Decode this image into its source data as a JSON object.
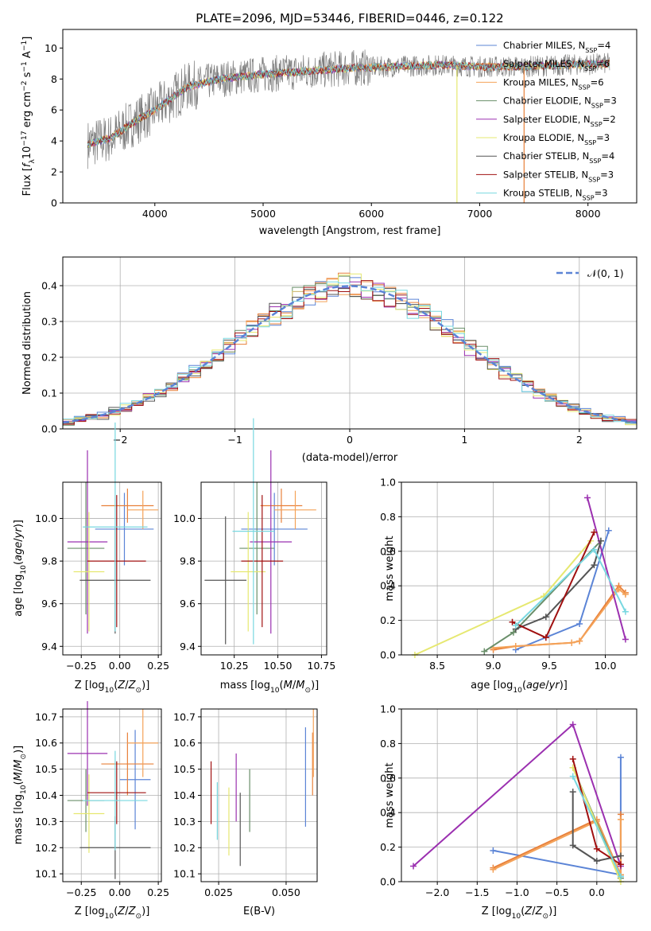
{
  "colors": [
    "#5b84d6",
    "#e8803a",
    "#f4a258",
    "#6a8f6a",
    "#9b30b0",
    "#e6e870",
    "#555555",
    "#a01010",
    "#78d8e0"
  ],
  "chart_data": [
    {
      "id": "spectrum",
      "type": "line",
      "title": "PLATE=2096, MJD=53446, FIBERID=0446, z=0.122",
      "xlabel": "wavelength [Angstrom, rest frame]",
      "ylabel": "Flux [fλ10⁻¹⁷ erg cm⁻² s⁻¹ A⁻¹]",
      "xlim": [
        3150,
        8450
      ],
      "ylim": [
        0,
        11.2
      ],
      "xticks": [
        4000,
        5000,
        6000,
        7000,
        8000
      ],
      "yticks": [
        0,
        2,
        4,
        6,
        8,
        10
      ],
      "series": [
        {
          "name": "Chabrier MILES, N_SSP=4"
        },
        {
          "name": "Salpeter MILES, N_SSP=6"
        },
        {
          "name": "Kroupa MILES, N_SSP=6"
        },
        {
          "name": "Chabrier ELODIE, N_SSP=3"
        },
        {
          "name": "Salpeter ELODIE, N_SSP=2"
        },
        {
          "name": "Kroupa ELODIE, N_SSP=3"
        },
        {
          "name": "Chabrier STELIB, N_SSP=4"
        },
        {
          "name": "Salpeter STELIB, N_SSP=3"
        },
        {
          "name": "Kroupa STELIB, N_SSP=3"
        }
      ],
      "continuum": {
        "x": [
          3380,
          3600,
          3800,
          4000,
          4300,
          4600,
          5000,
          5400,
          5800,
          6200,
          6600,
          7000,
          7400,
          7800,
          8200
        ],
        "y": [
          3.8,
          4.2,
          5.2,
          6.0,
          7.5,
          8.0,
          8.3,
          8.5,
          8.7,
          8.8,
          8.9,
          8.8,
          8.8,
          8.9,
          9.0
        ]
      },
      "spikes": [
        {
          "x": 6790,
          "from": 8.9,
          "to": 0,
          "color": 5
        },
        {
          "x": 7410,
          "from": 8.8,
          "to": 0,
          "color": 1
        }
      ]
    },
    {
      "id": "residuals",
      "type": "line",
      "xlabel": "(data-model)/error",
      "ylabel": "Normed distribution",
      "xlim": [
        -2.5,
        2.5
      ],
      "ylim": [
        0,
        0.48
      ],
      "xticks": [
        -2,
        -1,
        0,
        1,
        2
      ],
      "xticklabels": [
        "−2",
        "−1",
        "0",
        "1",
        "2"
      ],
      "yticks": [
        0.0,
        0.1,
        0.2,
        0.3,
        0.4
      ],
      "legend": "N(0,1)",
      "gaussian": {
        "mean": 0,
        "sigma": 1,
        "color": "#5b84d6"
      }
    },
    {
      "id": "age-vs-z",
      "type": "scatter",
      "xlabel": "Z [log10(Z/Z⊙)]",
      "ylabel": "age [log10(age/yr)]",
      "xlim": [
        -0.37,
        0.27
      ],
      "ylim": [
        9.36,
        10.17
      ],
      "xticks": [
        -0.25,
        0.0,
        0.25
      ],
      "xticklabels": [
        "−0.25",
        "0.00",
        "0.25"
      ],
      "yticks": [
        9.4,
        9.6,
        9.8,
        10.0
      ],
      "points": [
        {
          "c": 0,
          "x": 0.03,
          "xe": 0.19,
          "y": 9.95,
          "ye": 0.17
        },
        {
          "c": 1,
          "x": 0.05,
          "xe": 0.17,
          "y": 10.06,
          "ye": 0.08
        },
        {
          "c": 2,
          "x": 0.15,
          "xe": 0.1,
          "y": 10.04,
          "ye": 0.09
        },
        {
          "c": 3,
          "x": -0.22,
          "xe": 0.12,
          "y": 9.86,
          "ye": 0.31
        },
        {
          "c": 4,
          "x": -0.21,
          "xe": 0.13,
          "y": 9.89,
          "ye": 0.43
        },
        {
          "c": 5,
          "x": -0.2,
          "xe": 0.1,
          "y": 9.75,
          "ye": 0.28
        },
        {
          "c": 6,
          "x": -0.03,
          "xe": 0.23,
          "y": 9.71,
          "ye": 0.25
        },
        {
          "c": 7,
          "x": -0.02,
          "xe": 0.19,
          "y": 9.8,
          "ye": 0.31
        },
        {
          "c": 8,
          "x": -0.03,
          "xe": 0.21,
          "y": 9.96,
          "ye": 0.49
        }
      ]
    },
    {
      "id": "age-vs-mass",
      "type": "scatter",
      "xlabel": "mass [log10(M/M⊙)]",
      "xlim": [
        10.06,
        10.78
      ],
      "ylim": [
        9.36,
        10.17
      ],
      "xticks": [
        10.25,
        10.5,
        10.75
      ],
      "xticklabels": [
        "10.25",
        "10.50",
        "10.75"
      ],
      "yticks": [
        9.4,
        9.6,
        9.8,
        10.0
      ],
      "points": [
        {
          "c": 0,
          "x": 10.48,
          "xe": 0.19,
          "y": 9.95,
          "ye": 0.17
        },
        {
          "c": 1,
          "x": 10.52,
          "xe": 0.12,
          "y": 10.06,
          "ye": 0.08
        },
        {
          "c": 2,
          "x": 10.6,
          "xe": 0.12,
          "y": 10.04,
          "ye": 0.09
        },
        {
          "c": 3,
          "x": 10.38,
          "xe": 0.1,
          "y": 9.86,
          "ye": 0.31
        },
        {
          "c": 4,
          "x": 10.46,
          "xe": 0.12,
          "y": 9.89,
          "ye": 0.43
        },
        {
          "c": 5,
          "x": 10.33,
          "xe": 0.1,
          "y": 9.75,
          "ye": 0.28
        },
        {
          "c": 6,
          "x": 10.2,
          "xe": 0.12,
          "y": 9.71,
          "ye": 0.3
        },
        {
          "c": 7,
          "x": 10.41,
          "xe": 0.12,
          "y": 9.8,
          "ye": 0.31
        },
        {
          "c": 8,
          "x": 10.36,
          "xe": 0.12,
          "y": 9.94,
          "ye": 0.53
        }
      ]
    },
    {
      "id": "weight-vs-age",
      "type": "line",
      "xlabel": "age [log10(age/yr)]",
      "ylabel": "mass weight",
      "xlim": [
        8.18,
        10.28
      ],
      "ylim": [
        0,
        1.0
      ],
      "xticks": [
        8.5,
        9.0,
        9.5,
        10.0
      ],
      "xticklabels": [
        "8.5",
        "9.0",
        "9.5",
        "10.0"
      ],
      "yticks": [
        0.0,
        0.2,
        0.4,
        0.6,
        0.8,
        1.0
      ],
      "series": [
        {
          "c": 0,
          "x": [
            9.2,
            9.77,
            10.03
          ],
          "y": [
            0.03,
            0.18,
            0.72
          ]
        },
        {
          "c": 1,
          "x": [
            9.0,
            9.2,
            9.7,
            9.77,
            10.12,
            10.18
          ],
          "y": [
            0.03,
            0.05,
            0.07,
            0.08,
            0.4,
            0.36
          ]
        },
        {
          "c": 2,
          "x": [
            9.0,
            9.2,
            9.7,
            9.77,
            10.12,
            10.18
          ],
          "y": [
            0.04,
            0.05,
            0.07,
            0.08,
            0.38,
            0.35
          ]
        },
        {
          "c": 3,
          "x": [
            8.92,
            9.18,
            9.96
          ],
          "y": [
            0.02,
            0.13,
            0.66
          ]
        },
        {
          "c": 4,
          "x": [
            9.84,
            10.18
          ],
          "y": [
            0.91,
            0.09
          ]
        },
        {
          "c": 5,
          "x": [
            8.3,
            9.45,
            9.87
          ],
          "y": [
            0.0,
            0.34,
            0.66
          ]
        },
        {
          "c": 6,
          "x": [
            9.2,
            9.47,
            9.9,
            9.96
          ],
          "y": [
            0.15,
            0.22,
            0.52,
            0.66
          ]
        },
        {
          "c": 7,
          "x": [
            9.17,
            9.47,
            9.9
          ],
          "y": [
            0.19,
            0.1,
            0.71
          ]
        },
        {
          "c": 8,
          "x": [
            9.2,
            9.9,
            10.18
          ],
          "y": [
            0.17,
            0.61,
            0.25
          ]
        }
      ]
    },
    {
      "id": "mass-vs-z",
      "type": "scatter",
      "xlabel": "Z [log10(Z/Z⊙)]",
      "ylabel": "mass [log10(M/M⊙)]",
      "xlim": [
        -0.37,
        0.27
      ],
      "ylim": [
        10.07,
        10.73
      ],
      "xticks": [
        -0.25,
        0.0,
        0.25
      ],
      "xticklabels": [
        "−0.25",
        "0.00",
        "0.25"
      ],
      "yticks": [
        10.1,
        10.2,
        10.3,
        10.4,
        10.5,
        10.6,
        10.7
      ],
      "points": [
        {
          "c": 0,
          "x": 0.1,
          "xe": 0.1,
          "y": 10.46,
          "ye": 0.19
        },
        {
          "c": 1,
          "x": 0.05,
          "xe": 0.17,
          "y": 10.52,
          "ye": 0.12
        },
        {
          "c": 2,
          "x": 0.15,
          "xe": 0.1,
          "y": 10.6,
          "ye": 0.13
        },
        {
          "c": 3,
          "x": -0.22,
          "xe": 0.12,
          "y": 10.38,
          "ye": 0.12
        },
        {
          "c": 4,
          "x": -0.21,
          "xe": 0.13,
          "y": 10.56,
          "ye": 0.2
        },
        {
          "c": 5,
          "x": -0.2,
          "xe": 0.1,
          "y": 10.33,
          "ye": 0.15
        },
        {
          "c": 6,
          "x": -0.03,
          "xe": 0.23,
          "y": 10.2,
          "ye": 0.12
        },
        {
          "c": 7,
          "x": -0.02,
          "xe": 0.19,
          "y": 10.41,
          "ye": 0.12
        },
        {
          "c": 8,
          "x": -0.03,
          "xe": 0.21,
          "y": 10.38,
          "ye": 0.19
        }
      ]
    },
    {
      "id": "mass-vs-ebv",
      "type": "scatter",
      "xlabel": "E(B-V)",
      "xlim": [
        0.0185,
        0.0615
      ],
      "ylim": [
        10.07,
        10.73
      ],
      "xticks": [
        0.025,
        0.05
      ],
      "xticklabels": [
        "0.025",
        "0.050"
      ],
      "yticks": [
        10.1,
        10.2,
        10.3,
        10.4,
        10.5,
        10.6,
        10.7
      ],
      "points": [
        {
          "c": 0,
          "x": 0.0572,
          "y": 10.47,
          "ye": 0.19
        },
        {
          "c": 1,
          "x": 0.0598,
          "y": 10.52,
          "ye": 0.12
        },
        {
          "c": 2,
          "x": 0.0601,
          "y": 10.6,
          "ye": 0.13
        },
        {
          "c": 3,
          "x": 0.0365,
          "y": 10.38,
          "ye": 0.12
        },
        {
          "c": 4,
          "x": 0.0315,
          "y": 10.43,
          "ye": 0.13
        },
        {
          "c": 5,
          "x": 0.0288,
          "y": 10.3,
          "ye": 0.13
        },
        {
          "c": 6,
          "x": 0.033,
          "y": 10.27,
          "ye": 0.14
        },
        {
          "c": 7,
          "x": 0.0222,
          "y": 10.41,
          "ye": 0.12
        },
        {
          "c": 8,
          "x": 0.0245,
          "y": 10.34,
          "ye": 0.11
        }
      ]
    },
    {
      "id": "weight-vs-z",
      "type": "line",
      "xlabel": "Z [log10(Z/Z⊙)]",
      "ylabel": "mass weight",
      "xlim": [
        -2.45,
        0.5
      ],
      "ylim": [
        0,
        1.0
      ],
      "xticks": [
        -2.0,
        -1.5,
        -1.0,
        -0.5,
        0.0
      ],
      "xticklabels": [
        "−2.0",
        "−1.5",
        "−1.0",
        "−0.5",
        "0.0"
      ],
      "yticks": [
        0.0,
        0.2,
        0.4,
        0.6,
        0.8,
        1.0
      ],
      "series": [
        {
          "c": 0,
          "x": [
            -1.3,
            0.3,
            0.3
          ],
          "y": [
            0.18,
            0.04,
            0.72
          ]
        },
        {
          "c": 1,
          "x": [
            -1.3,
            0.0,
            0.3,
            0.3
          ],
          "y": [
            0.08,
            0.36,
            0.04,
            0.39
          ]
        },
        {
          "c": 2,
          "x": [
            -1.3,
            0.0,
            0.3,
            0.3
          ],
          "y": [
            0.07,
            0.35,
            0.04,
            0.36
          ]
        },
        {
          "c": 3,
          "x": [
            -0.3,
            0.3
          ],
          "y": [
            0.66,
            0.02
          ]
        },
        {
          "c": 4,
          "x": [
            -2.3,
            -0.3,
            0.3
          ],
          "y": [
            0.09,
            0.91,
            0.09
          ]
        },
        {
          "c": 5,
          "x": [
            -0.3,
            0.3
          ],
          "y": [
            0.66,
            0.0
          ]
        },
        {
          "c": 6,
          "x": [
            -0.3,
            -0.3,
            0.0,
            0.3
          ],
          "y": [
            0.52,
            0.21,
            0.12,
            0.15
          ]
        },
        {
          "c": 7,
          "x": [
            -0.3,
            0.0,
            0.3
          ],
          "y": [
            0.71,
            0.19,
            0.1
          ]
        },
        {
          "c": 8,
          "x": [
            -0.3,
            0.3
          ],
          "y": [
            0.61,
            0.03
          ]
        }
      ]
    }
  ]
}
